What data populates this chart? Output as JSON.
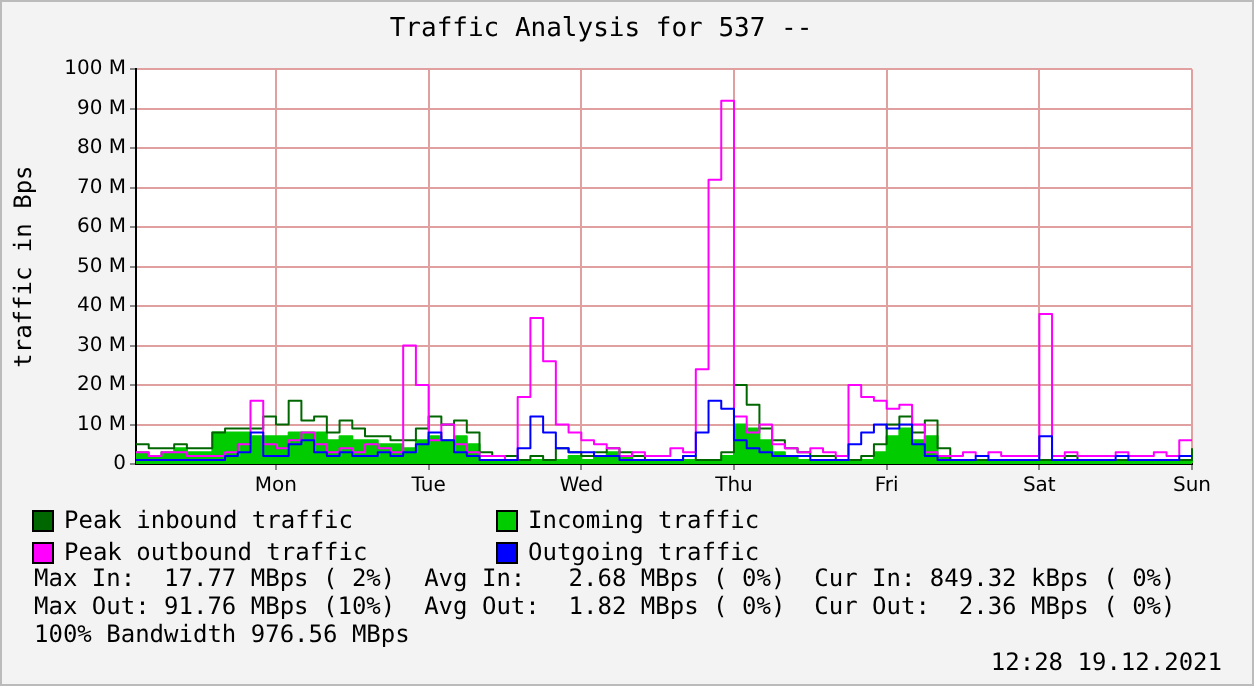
{
  "chart_data": {
    "type": "step",
    "title": "Traffic Analysis for 537 --",
    "ylabel": "traffic in Bps",
    "categories": [
      null,
      null,
      null,
      null,
      null,
      null,
      null,
      null,
      null,
      null,
      null,
      "Mon",
      null,
      null,
      null,
      null,
      null,
      null,
      null,
      null,
      null,
      null,
      null,
      "Tue",
      null,
      null,
      null,
      null,
      null,
      null,
      null,
      null,
      null,
      null,
      null,
      "Wed",
      null,
      null,
      null,
      null,
      null,
      null,
      null,
      null,
      null,
      null,
      null,
      "Thu",
      null,
      null,
      null,
      null,
      null,
      null,
      null,
      null,
      null,
      null,
      null,
      "Fri",
      null,
      null,
      null,
      null,
      null,
      null,
      null,
      null,
      null,
      null,
      null,
      "Sat",
      null,
      null,
      null,
      null,
      null,
      null,
      null,
      null,
      null,
      null,
      null,
      "Sun"
    ],
    "ylim": [
      0,
      100
    ],
    "yticks": [
      0,
      {
        "value": 10,
        "label": "10 M"
      },
      {
        "value": 20,
        "label": "20 M"
      },
      {
        "value": 30,
        "label": "30 M"
      },
      {
        "value": 40,
        "label": "40 M"
      },
      {
        "value": 50,
        "label": "50 M"
      },
      {
        "value": 60,
        "label": "60 M"
      },
      {
        "value": 70,
        "label": "70 M"
      },
      {
        "value": 80,
        "label": "80 M"
      },
      {
        "value": 90,
        "label": "90 M"
      },
      {
        "value": 100,
        "label": "100 M"
      }
    ],
    "grid": true,
    "legend": "bottom",
    "series": [
      {
        "name": "Peak inbound traffic",
        "color": "#006600",
        "type": "step",
        "values": [
          5,
          4,
          4,
          5,
          4,
          4,
          8,
          9,
          9,
          9,
          12,
          10,
          16,
          11,
          12,
          8,
          11,
          9,
          7,
          7,
          6,
          6,
          9,
          12,
          10,
          11,
          8,
          3,
          2,
          2,
          1,
          2,
          1,
          4,
          3,
          2,
          3,
          4,
          3,
          2,
          1,
          1,
          1,
          2,
          1,
          1,
          3,
          20,
          15,
          9,
          6,
          4,
          3,
          2,
          2,
          1,
          1,
          2,
          5,
          10,
          12,
          8,
          11,
          4,
          1,
          1,
          1,
          1,
          1,
          1,
          1,
          1,
          1,
          2,
          1,
          1,
          1,
          1,
          1,
          1,
          1,
          1,
          1,
          4
        ]
      },
      {
        "name": "Incoming traffic",
        "color": "#00cc00",
        "type": "area",
        "values": [
          3,
          2,
          3,
          4,
          3,
          3,
          8,
          8,
          8,
          7,
          7,
          7,
          8,
          8,
          8,
          6,
          7,
          6,
          6,
          5,
          5,
          4,
          6,
          7,
          6,
          7,
          5,
          1,
          1,
          1,
          0.5,
          1,
          0.5,
          1,
          2,
          1,
          2,
          3,
          2,
          1,
          0.5,
          0.5,
          0.5,
          1,
          0.5,
          1,
          2,
          10,
          9,
          6,
          3,
          2,
          1,
          1,
          1,
          0.5,
          0.5,
          1,
          3,
          7,
          9,
          6,
          7,
          2,
          0.5,
          0.5,
          0.5,
          0.5,
          0.5,
          0.5,
          0.5,
          0.5,
          0.5,
          0.5,
          0.5,
          0.5,
          0.5,
          0.5,
          0.5,
          0.5,
          0.5,
          0.5,
          0.5,
          1
        ]
      },
      {
        "name": "Peak outbound traffic",
        "color": "#ff00ff",
        "type": "step",
        "values": [
          3,
          2,
          3,
          3,
          2,
          2,
          2,
          3,
          5,
          16,
          5,
          4,
          6,
          8,
          5,
          3,
          4,
          3,
          5,
          4,
          3,
          30,
          20,
          6,
          10,
          5,
          3,
          2,
          2,
          1,
          17,
          37,
          26,
          10,
          8,
          6,
          5,
          4,
          2,
          3,
          2,
          2,
          4,
          3,
          24,
          72,
          92,
          12,
          8,
          10,
          5,
          4,
          3,
          4,
          3,
          2,
          20,
          17,
          16,
          14,
          15,
          10,
          3,
          2,
          2,
          3,
          2,
          3,
          2,
          2,
          2,
          38,
          2,
          3,
          2,
          2,
          2,
          3,
          2,
          2,
          3,
          2,
          6,
          6
        ]
      },
      {
        "name": "Outgoing traffic",
        "color": "#0000ff",
        "type": "step",
        "values": [
          1,
          1,
          1,
          1,
          1,
          1,
          1,
          2,
          3,
          8,
          2,
          2,
          5,
          6,
          3,
          2,
          3,
          2,
          2,
          3,
          2,
          3,
          5,
          8,
          6,
          3,
          2,
          1,
          1,
          1,
          4,
          12,
          8,
          4,
          3,
          3,
          2,
          2,
          1,
          1,
          1,
          1,
          1,
          2,
          8,
          16,
          14,
          6,
          4,
          3,
          2,
          2,
          2,
          1,
          1,
          1,
          5,
          8,
          10,
          9,
          10,
          5,
          2,
          1,
          1,
          1,
          2,
          1,
          1,
          1,
          1,
          7,
          1,
          1,
          1,
          1,
          1,
          2,
          1,
          1,
          1,
          1,
          2,
          2
        ]
      }
    ],
    "annotations": [
      "Max In:  17.77 MBps ( 2%)  Avg In:   2.68 MBps ( 0%)  Cur In: 849.32 kBps ( 0%)",
      "Max Out: 91.76 MBps (10%)  Avg Out:  1.82 MBps ( 0%)  Cur Out:  2.36 MBps ( 0%)",
      "100% Bandwidth 976.56 MBps",
      "12:28 19.12.2021"
    ]
  }
}
